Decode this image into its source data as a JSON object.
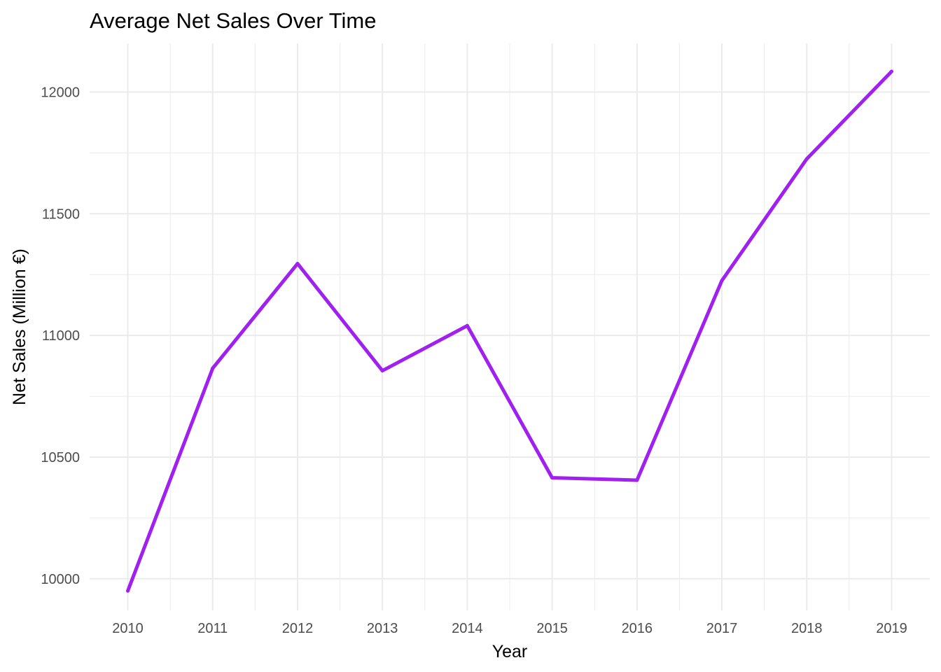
{
  "chart_data": {
    "type": "line",
    "title": "Average Net Sales Over Time",
    "xlabel": "Year",
    "ylabel": "Net Sales (Million €)",
    "x": [
      2010,
      2011,
      2012,
      2013,
      2014,
      2015,
      2016,
      2017,
      2018,
      2019
    ],
    "series": [
      {
        "values": [
          9950,
          10865,
          11295,
          10855,
          11040,
          10415,
          10405,
          11225,
          11725,
          12085
        ]
      }
    ],
    "xlim": [
      2009.55,
      2019.45
    ],
    "ylim": [
      9870,
      12200
    ],
    "yticks": [
      10000,
      10500,
      11000,
      11500,
      12000
    ],
    "grid": true,
    "legend": "none",
    "line_color": "#A020F0",
    "grid_color": "#EBEBEB",
    "background": "#FFFFFF"
  }
}
